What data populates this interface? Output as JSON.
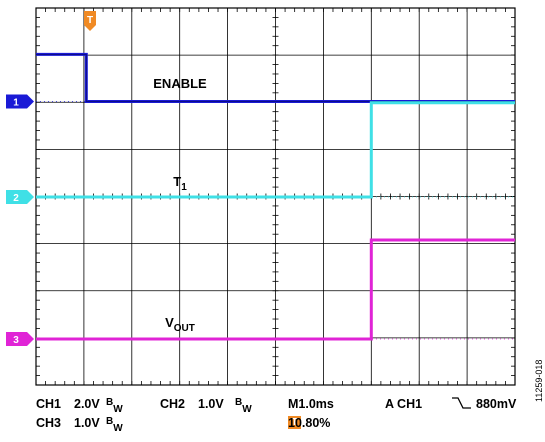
{
  "colors": {
    "ch1": "#1a1ad6",
    "ch2": "#3fe0e6",
    "ch3": "#e024d6",
    "trigger": "#f08a24",
    "grid": "#000000"
  },
  "screen": {
    "divisions_x": 10,
    "divisions_y": 8,
    "trigger_marker": {
      "label": "T",
      "icon": "trigger-arrow-down-icon"
    }
  },
  "channels": [
    {
      "id": "1",
      "label": "ENABLE",
      "label_sub": "",
      "color": "#1a1ad6",
      "waveform": [
        [
          0,
          1.0
        ],
        [
          1.05,
          1.0
        ],
        [
          1.05,
          0.0
        ],
        [
          10,
          0.0
        ]
      ],
      "note": "high then falls to baseline at ~1.05 div"
    },
    {
      "id": "2",
      "label": "T",
      "label_sub": "1",
      "color": "#3fe0e6",
      "waveform": [
        [
          0,
          0.0
        ],
        [
          7.0,
          0.0
        ],
        [
          7.0,
          2.0
        ],
        [
          10,
          2.0
        ]
      ],
      "note": "rises ~2 div at ~7.0 div"
    },
    {
      "id": "3",
      "label": "V",
      "label_sub": "OUT",
      "color": "#e024d6",
      "waveform": [
        [
          0,
          0.0
        ],
        [
          7.0,
          0.0
        ],
        [
          7.0,
          2.1
        ],
        [
          10,
          2.1
        ]
      ],
      "note": "rises ~2.1 div at ~7.0 div"
    }
  ],
  "status": {
    "ch1": "CH1",
    "ch1_scale": "2.0V",
    "bw_b": "B",
    "bw_w": "W",
    "ch2": "CH2",
    "ch2_scale": "1.0V",
    "ch3": "CH3",
    "ch3_scale": "1.0V",
    "timebase": "M1.0ms",
    "trig_source": "A  CH1",
    "trig_slope_icon": "falling-edge-icon",
    "trig_level": "880mV",
    "trig_icon_label": "T",
    "trig_position": "10.80%"
  },
  "figure_id": "11259-018"
}
